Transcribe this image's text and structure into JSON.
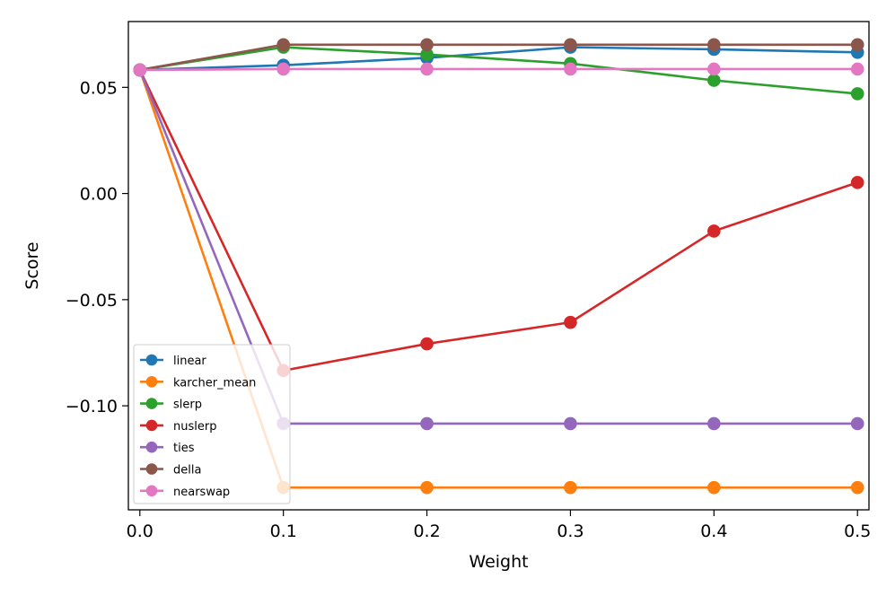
{
  "chart_data": {
    "type": "line",
    "title": "",
    "xlabel": "Weight",
    "ylabel": "Score",
    "x": [
      0.0,
      0.1,
      0.2,
      0.3,
      0.4,
      0.5
    ],
    "xlim": [
      -0.008,
      0.508
    ],
    "ylim": [
      -0.149,
      0.081
    ],
    "xticks": [
      0.0,
      0.1,
      0.2,
      0.3,
      0.4,
      0.5
    ],
    "xtick_labels": [
      "0.0",
      "0.1",
      "0.2",
      "0.3",
      "0.4",
      "0.5"
    ],
    "yticks": [
      0.05,
      0.0,
      -0.05,
      -0.1
    ],
    "ytick_labels": [
      "0.05",
      "0.00",
      "−0.05",
      "−0.10"
    ],
    "legend_position": "lower-left",
    "grid": false,
    "series": [
      {
        "name": "linear",
        "color": "#1f77b4",
        "values": [
          0.0582,
          0.0604,
          0.0639,
          0.0689,
          0.0679,
          0.0665
        ]
      },
      {
        "name": "karcher_mean",
        "color": "#ff7f0e",
        "values": [
          0.0582,
          -0.1385,
          -0.1385,
          -0.1385,
          -0.1385,
          -0.1385
        ]
      },
      {
        "name": "slerp",
        "color": "#2ca02c",
        "values": [
          0.0582,
          0.0689,
          0.0655,
          0.0612,
          0.0533,
          0.047
        ]
      },
      {
        "name": "nuslerp",
        "color": "#d62728",
        "values": [
          0.0582,
          -0.0834,
          -0.0708,
          -0.0607,
          -0.0177,
          0.0052
        ]
      },
      {
        "name": "ties",
        "color": "#9467bd",
        "values": [
          0.0582,
          -0.1084,
          -0.1084,
          -0.1084,
          -0.1084,
          -0.1084
        ]
      },
      {
        "name": "della",
        "color": "#8c564b",
        "values": [
          0.0582,
          0.0701,
          0.0701,
          0.0701,
          0.0701,
          0.0701
        ]
      },
      {
        "name": "nearswap",
        "color": "#e377c2",
        "values": [
          0.0582,
          0.0586,
          0.0586,
          0.0586,
          0.0586,
          0.0586
        ]
      }
    ]
  }
}
